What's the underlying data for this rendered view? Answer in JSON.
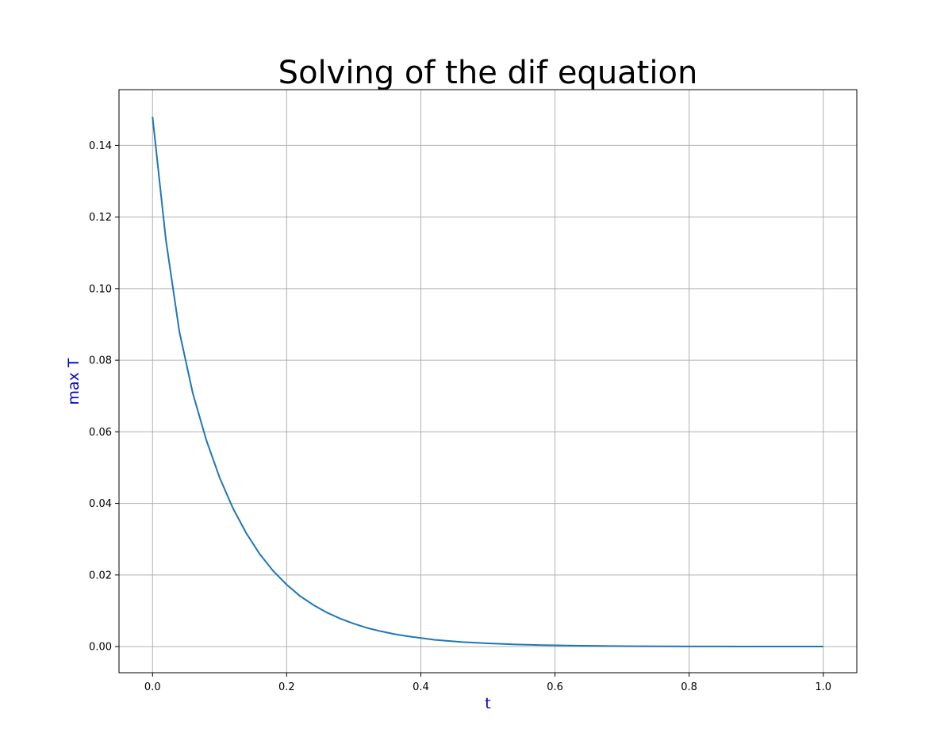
{
  "chart_data": {
    "type": "line",
    "title": "Solving of the dif equation",
    "xlabel": "t",
    "ylabel": "max T",
    "label_color": "#0000cc",
    "line_color": "#1f77b4",
    "grid": true,
    "xlim": [
      -0.05,
      1.05
    ],
    "ylim": [
      -0.0073,
      0.1556
    ],
    "xticks": [
      0.0,
      0.2,
      0.4,
      0.6,
      0.8,
      1.0
    ],
    "xtick_labels": [
      "0.0",
      "0.2",
      "0.4",
      "0.6",
      "0.8",
      "1.0"
    ],
    "yticks": [
      0.0,
      0.02,
      0.04,
      0.06,
      0.08,
      0.1,
      0.12,
      0.14
    ],
    "ytick_labels": [
      "0.00",
      "0.02",
      "0.04",
      "0.06",
      "0.08",
      "0.10",
      "0.12",
      "0.14"
    ],
    "series": [
      {
        "x": [
          0.0,
          0.02,
          0.04,
          0.06,
          0.08,
          0.1,
          0.12,
          0.14,
          0.16,
          0.18,
          0.2,
          0.22,
          0.24,
          0.26,
          0.28,
          0.3,
          0.32,
          0.34,
          0.36,
          0.38,
          0.4,
          0.42,
          0.44,
          0.46,
          0.48,
          0.5,
          0.52,
          0.54,
          0.56,
          0.58,
          0.6,
          0.64,
          0.68,
          0.72,
          0.76,
          0.8,
          0.84,
          0.88,
          0.92,
          0.96,
          1.0
        ],
        "y": [
          0.148,
          0.1135,
          0.088,
          0.0708,
          0.0578,
          0.0472,
          0.0386,
          0.0316,
          0.0258,
          0.0211,
          0.0173,
          0.0141,
          0.0116,
          0.0095,
          0.0078,
          0.0064,
          0.0052,
          0.0043,
          0.0035,
          0.0029,
          0.0024,
          0.0019,
          0.0016,
          0.0013,
          0.0011,
          0.0009,
          0.00075,
          0.0006,
          0.0005,
          0.0004,
          0.00035,
          0.00024,
          0.00016,
          0.00011,
          7e-05,
          5e-05,
          3e-05,
          2e-05,
          1e-05,
          1e-05,
          0.0
        ]
      }
    ]
  }
}
